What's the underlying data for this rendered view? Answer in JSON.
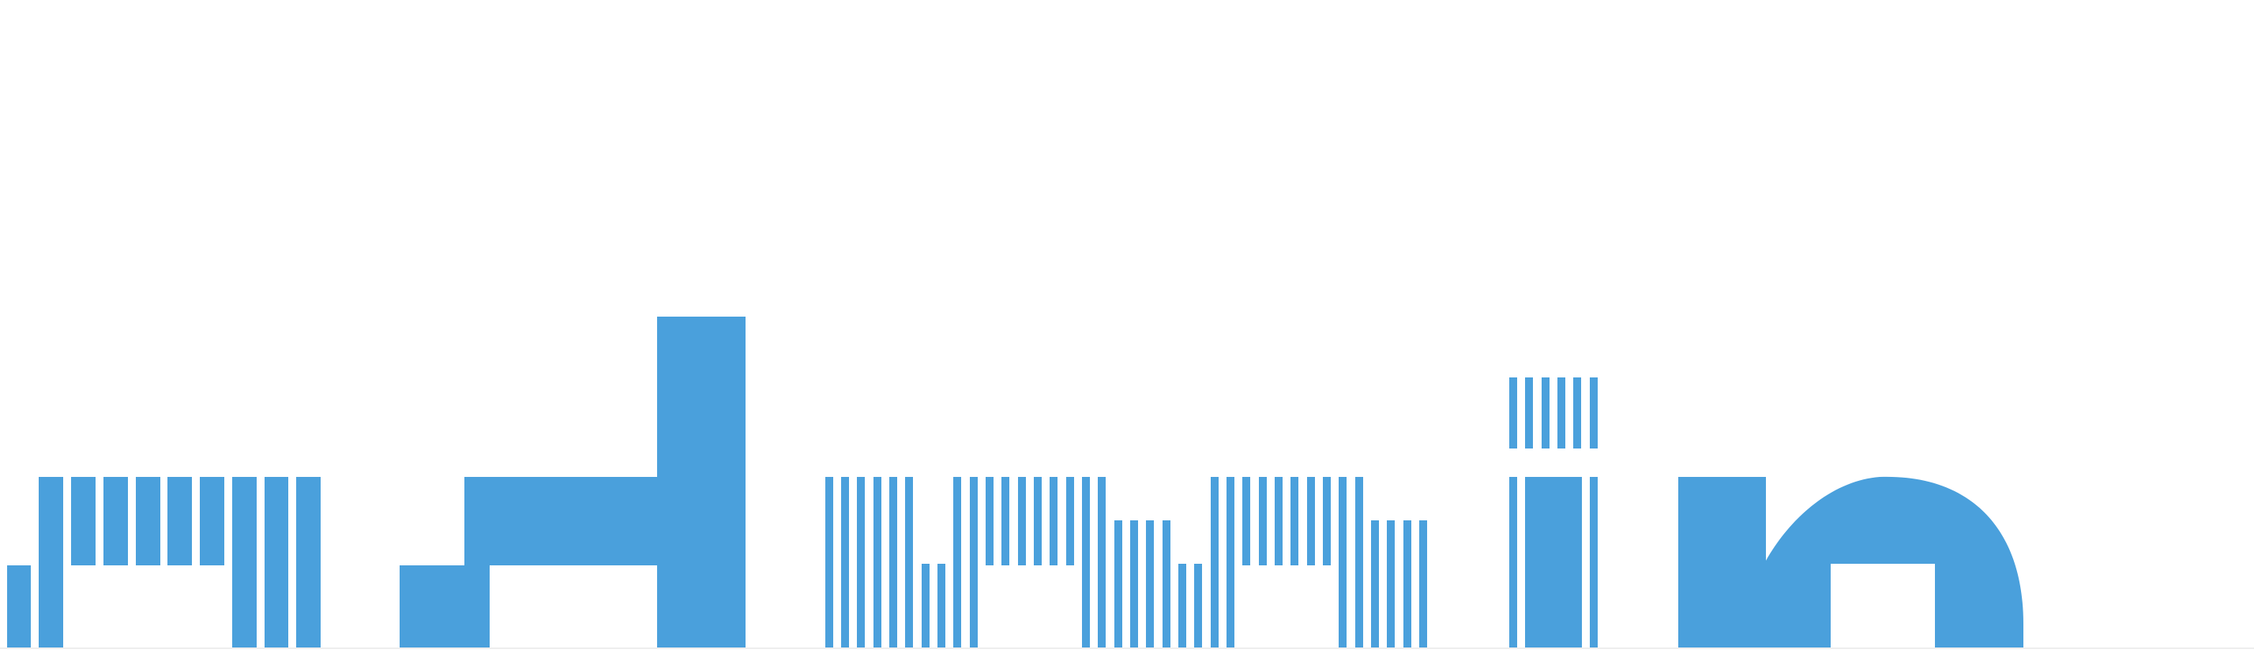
{
  "accent_color": "#4aa0dc",
  "background_color": "#ffffff",
  "baseline_color": "#eeeeee"
}
